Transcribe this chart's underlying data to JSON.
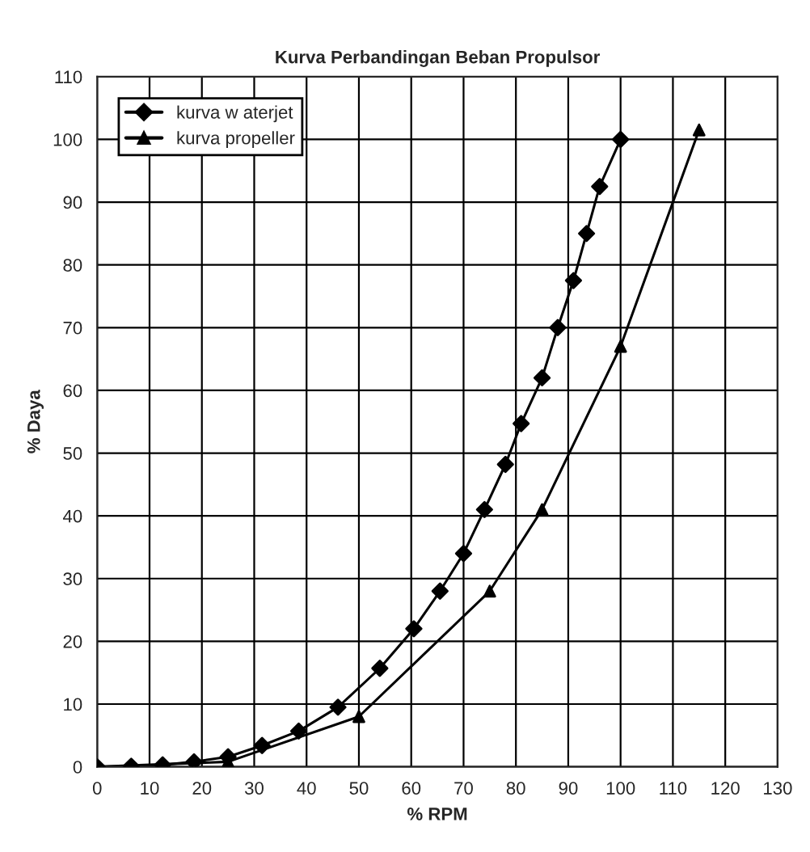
{
  "chart_data": {
    "type": "line",
    "title": "Kurva Perbandingan Beban Propulsor",
    "xlabel": "% RPM",
    "ylabel": "% Daya",
    "xlim": [
      0,
      130
    ],
    "xticks": [
      0,
      10,
      20,
      30,
      40,
      50,
      60,
      70,
      80,
      90,
      100,
      110,
      120,
      130
    ],
    "ylim": [
      0,
      110
    ],
    "yticks": [
      0,
      10,
      20,
      30,
      40,
      50,
      60,
      70,
      80,
      90,
      100,
      110
    ],
    "grid": true,
    "legend": "top left",
    "line_style": "solid",
    "series": [
      {
        "name": "kurva w aterjet",
        "color": "#000000",
        "marker": "diamond",
        "x": [
          0,
          6.5,
          12.5,
          18.5,
          25,
          31.5,
          38.5,
          46,
          54,
          60.5,
          65.5,
          70,
          74,
          78,
          81,
          85,
          88,
          91,
          93.5,
          96,
          100
        ],
        "values": [
          0,
          0.1,
          0.3,
          0.8,
          1.6,
          3.4,
          5.7,
          9.5,
          15.7,
          22,
          28,
          34,
          41,
          48.2,
          54.7,
          62,
          70,
          77.5,
          85,
          92.5,
          100
        ]
      },
      {
        "name": "kurva propeller",
        "color": "#000000",
        "marker": "triangle",
        "x": [
          0,
          25,
          50,
          75,
          85,
          100,
          115
        ],
        "values": [
          0,
          0.8,
          8,
          28,
          41,
          67,
          101.5
        ]
      }
    ]
  }
}
